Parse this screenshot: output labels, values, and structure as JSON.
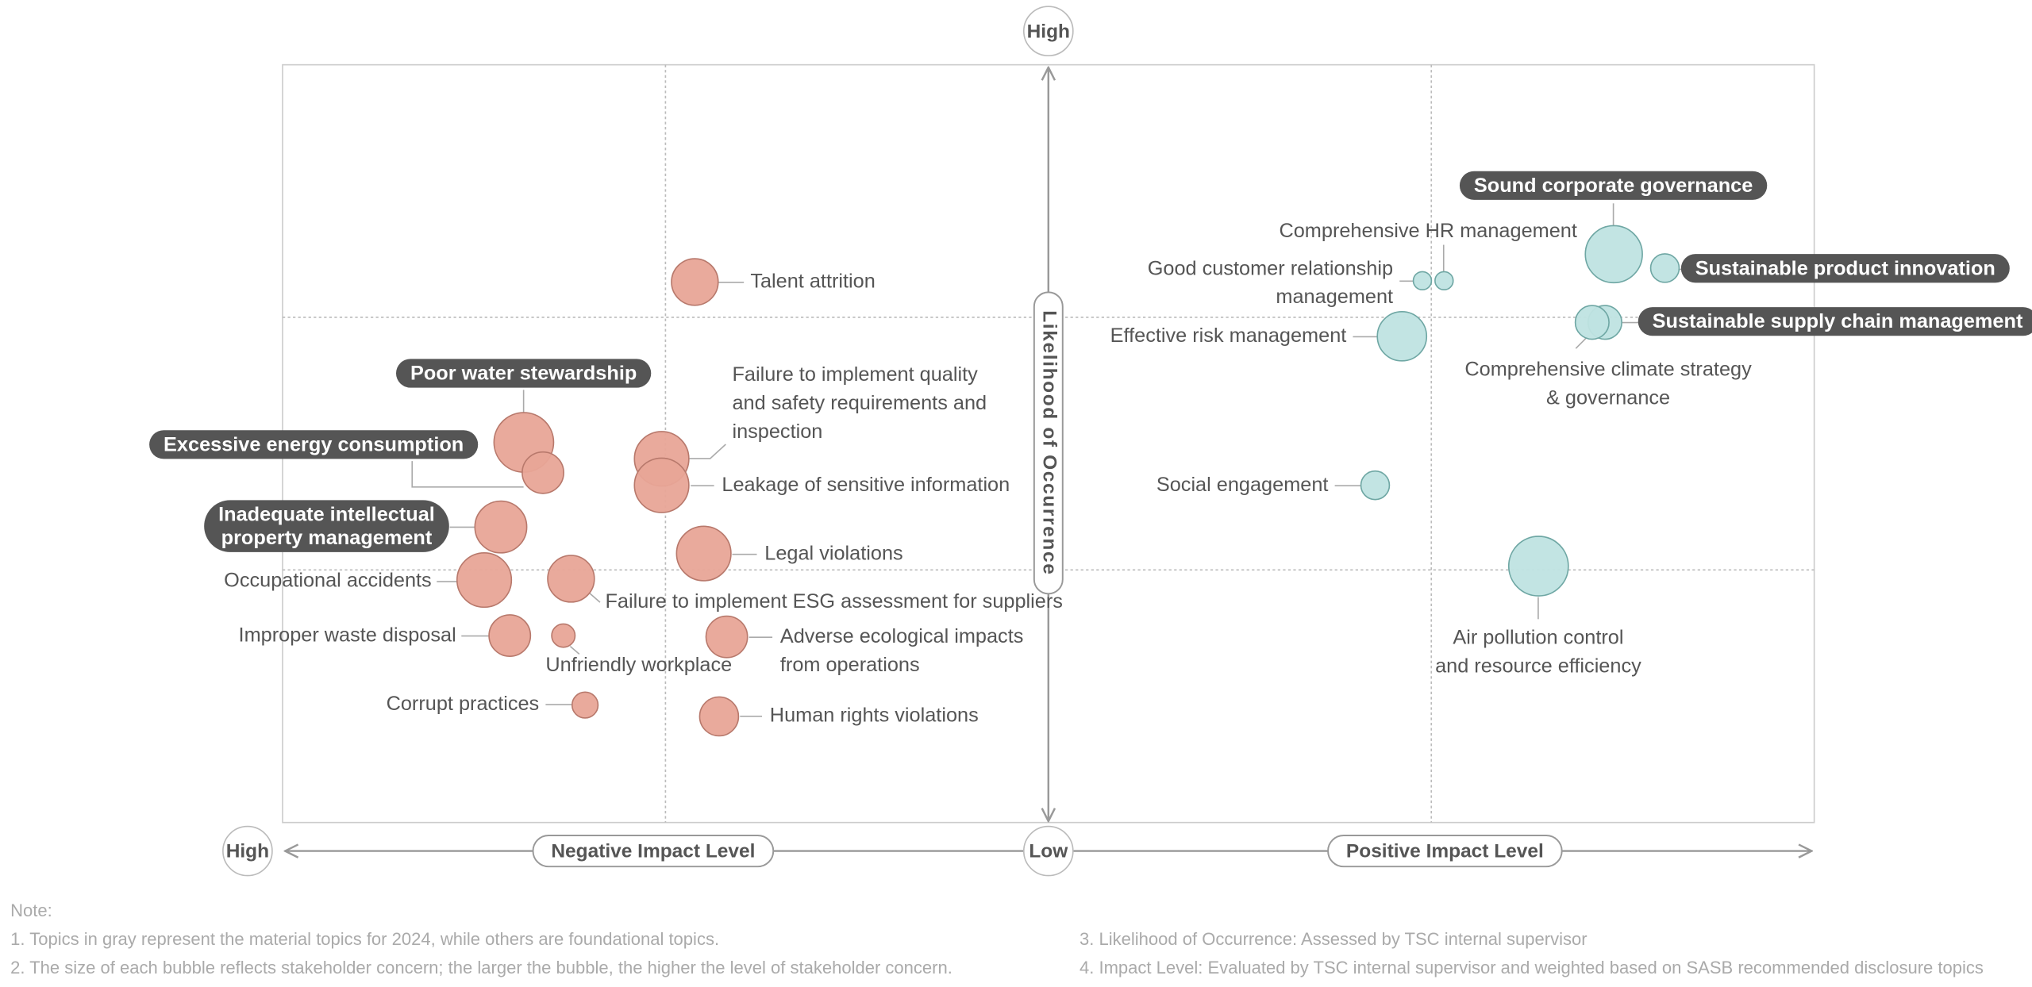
{
  "chart_data": {
    "type": "bubble",
    "y_axis_label": "Likelihood of Occurrence",
    "y_high_label": "High",
    "x_high_label": "High",
    "origin_label": "Low",
    "x_negative_label": "Negative Impact Level",
    "x_positive_label": "Positive Impact Level",
    "xlim": [
      -6,
      6
    ],
    "ylim": [
      0,
      6
    ],
    "xgrid": [
      -3,
      3
    ],
    "ygrid": [
      2,
      4
    ],
    "highlight_color": "#555555",
    "series": [
      {
        "color": "#e8a597",
        "stroke": "#b8796c",
        "x": [
          -2.77,
          -4.11,
          -3.96,
          -3.03,
          -3.03,
          -4.29,
          -2.7,
          -4.42,
          -3.74,
          -4.22,
          -3.8,
          -2.52,
          -3.63,
          -2.58
        ],
        "values": [
          4.28,
          3.01,
          2.77,
          2.88,
          2.67,
          2.34,
          2.13,
          1.92,
          1.93,
          1.48,
          1.48,
          1.47,
          0.93,
          0.84
        ],
        "sizes": [
          18,
          23,
          16,
          21,
          21,
          20,
          21,
          21,
          18,
          16,
          9,
          16,
          10,
          15
        ],
        "material": [
          false,
          true,
          true,
          false,
          false,
          true,
          false,
          false,
          false,
          false,
          false,
          false,
          false,
          false
        ],
        "labels": [
          [
            "Talent attrition"
          ],
          [
            "Poor water stewardship"
          ],
          [
            "Excessive energy consumption"
          ],
          [
            "Failure to implement quality",
            "and safety requirements and",
            "inspection"
          ],
          [
            "Leakage of sensitive information"
          ],
          [
            "Inadequate intellectual",
            "property management"
          ],
          [
            "Legal violations"
          ],
          [
            "Occupational accidents"
          ],
          [
            "Failure to implement ESG assessment for suppliers"
          ],
          [
            "Improper waste disposal"
          ],
          [
            "Unfriendly workplace"
          ],
          [
            "Adverse ecological impacts",
            "from operations"
          ],
          [
            "Corrupt practices"
          ],
          [
            "Human rights violations"
          ]
        ]
      },
      {
        "color": "#bfe3e1",
        "stroke": "#6fa7a4",
        "x": [
          4.43,
          4.83,
          3.1,
          2.93,
          4.36,
          4.26,
          2.77,
          2.56,
          3.84
        ],
        "values": [
          4.5,
          4.39,
          4.29,
          4.29,
          3.96,
          3.96,
          3.85,
          2.67,
          2.03
        ],
        "sizes": [
          22,
          11,
          7,
          7,
          13,
          13,
          19,
          11,
          23
        ],
        "material": [
          true,
          true,
          false,
          false,
          true,
          false,
          false,
          false,
          false
        ],
        "labels": [
          [
            "Sound corporate governance"
          ],
          [
            "Sustainable product innovation"
          ],
          [
            "Comprehensive HR management"
          ],
          [
            "Good customer relationship",
            "management"
          ],
          [
            "Sustainable supply chain management"
          ],
          [
            "Comprehensive climate strategy",
            "& governance"
          ],
          [
            "Effective risk management"
          ],
          [
            "Social engagement"
          ],
          [
            "Air pollution control",
            "and resource efficiency"
          ]
        ]
      }
    ]
  },
  "notes": {
    "title": "Note:",
    "items": [
      "1. Topics in gray represent the material topics for 2024, while others are foundational topics.",
      "2. The size of each bubble reflects stakeholder concern; the larger the bubble, the higher the level of stakeholder concern.",
      "3. Likelihood of Occurrence: Assessed by TSC internal supervisor",
      "4. Impact Level: Evaluated by TSC internal supervisor and weighted based on SASB recommended disclosure topics"
    ]
  }
}
